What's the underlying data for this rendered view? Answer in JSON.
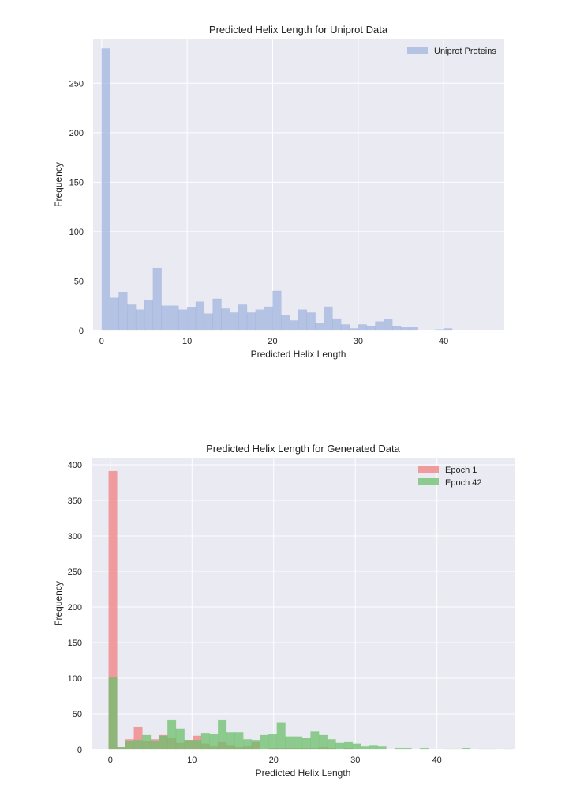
{
  "chart_data": [
    {
      "type": "bar",
      "title": "Predicted Helix Length for Uniprot Data",
      "xlabel": "Predicted Helix Length",
      "ylabel": "Frequency",
      "xlim": [
        -1,
        47
      ],
      "ylim": [
        0,
        295
      ],
      "xticks": [
        0,
        10,
        20,
        30,
        40
      ],
      "yticks": [
        0,
        50,
        100,
        150,
        200,
        250
      ],
      "grid": true,
      "legend_position": "top-right",
      "bin_width": 1,
      "bin_start": 0,
      "series": [
        {
          "name": "Uniprot Proteins",
          "color": "#8fa7d9",
          "opacity": 0.6,
          "values": [
            285,
            33,
            39,
            26,
            21,
            31,
            63,
            25,
            25,
            21,
            23,
            29,
            17,
            32,
            22,
            18,
            26,
            18,
            21,
            24,
            40,
            15,
            10,
            21,
            18,
            7,
            24,
            12,
            6,
            2,
            6,
            4,
            9,
            11,
            4,
            3,
            3,
            0,
            0,
            1,
            2
          ]
        }
      ]
    },
    {
      "type": "bar",
      "title": "Predicted Helix Length for Generated Data",
      "xlabel": "Predicted Helix Length",
      "ylabel": "Frequency",
      "xlim": [
        -2.3,
        49.5
      ],
      "ylim": [
        0,
        410
      ],
      "xticks": [
        0,
        10,
        20,
        30,
        40
      ],
      "yticks": [
        0,
        50,
        100,
        150,
        200,
        250,
        300,
        350,
        400
      ],
      "grid": true,
      "legend_position": "top-right",
      "bin_width": 1.03,
      "bin_start": -0.2,
      "series": [
        {
          "name": "Epoch 1",
          "color": "#f07f7f",
          "opacity": 0.75,
          "values": [
            391,
            3,
            14,
            31,
            11,
            14,
            20,
            16,
            9,
            13,
            19,
            8,
            4,
            10,
            5,
            3,
            4,
            10,
            0,
            2,
            2,
            2,
            2,
            2,
            2,
            3,
            2,
            0,
            2,
            0,
            0,
            0,
            0,
            0,
            0,
            0,
            0,
            0,
            0,
            0,
            0,
            0,
            0,
            0,
            0,
            0
          ]
        },
        {
          "name": "Epoch 42",
          "color": "#6cbf6c",
          "opacity": 0.75,
          "values": [
            101,
            3,
            11,
            13,
            20,
            12,
            19,
            41,
            29,
            13,
            13,
            23,
            22,
            41,
            24,
            24,
            14,
            13,
            20,
            21,
            37,
            18,
            18,
            16,
            25,
            20,
            14,
            9,
            10,
            8,
            4,
            5,
            4,
            0,
            2,
            2,
            0,
            2,
            0,
            0,
            1,
            1,
            2,
            0,
            1,
            1,
            0,
            1
          ]
        }
      ]
    }
  ]
}
